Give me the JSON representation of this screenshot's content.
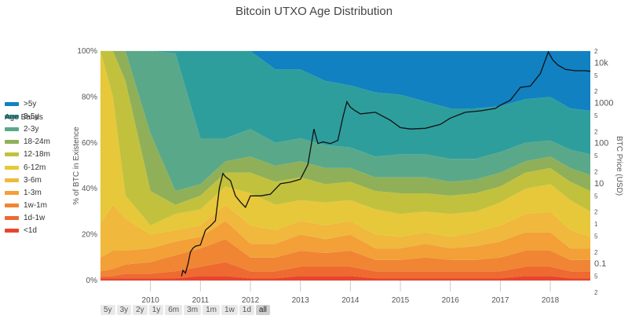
{
  "title": "Bitcoin UTXO Age Distribution",
  "legend_title": "Age Bands",
  "range_selector": {
    "buttons": [
      "5y",
      "3y",
      "2y",
      "1y",
      "6m",
      "3m",
      "1m",
      "1w",
      "1d",
      "all"
    ],
    "active": "all"
  },
  "chart_data": {
    "type": "area",
    "title": "Bitcoin UTXO Age Distribution",
    "stacking": "percent",
    "grid": true,
    "legend_position": "left",
    "x_axis": {
      "ticks": [
        "2010",
        "2011",
        "2012",
        "2013",
        "2014",
        "2015",
        "2016",
        "2017",
        "2018"
      ],
      "range": [
        2009.0,
        2018.8
      ]
    },
    "y_axis_left": {
      "label": "% of BTC in Existence",
      "ticks": [
        "0%",
        "20%",
        "40%",
        "60%",
        "80%",
        "100%"
      ],
      "range": [
        0,
        100
      ]
    },
    "y_axis_right": {
      "label": "BTC Price (USD)",
      "scale": "log",
      "tick_labels": [
        "2",
        "10k",
        "5",
        "2",
        "1000",
        "5",
        "2",
        "100",
        "5",
        "2",
        "10",
        "5",
        "2",
        "1",
        "5",
        "2",
        "0.1",
        "5",
        "2"
      ]
    },
    "x": [
      2009.0,
      2009.25,
      2009.5,
      2010.0,
      2010.5,
      2011.0,
      2011.5,
      2012.0,
      2012.5,
      2013.0,
      2013.5,
      2014.0,
      2014.5,
      2015.0,
      2015.5,
      2016.0,
      2016.5,
      2017.0,
      2017.5,
      2018.0,
      2018.4,
      2018.8
    ],
    "series": [
      {
        "name": "<1d",
        "color": "#e8452c",
        "values": [
          1,
          1,
          1,
          1,
          1,
          2,
          2,
          1,
          1,
          2,
          2,
          2,
          1,
          1,
          1,
          1,
          1,
          1,
          2,
          2,
          1,
          1
        ]
      },
      {
        "name": "1d-1w",
        "color": "#ee6a30",
        "values": [
          1,
          1,
          2,
          2,
          3,
          4,
          6,
          3,
          3,
          4,
          4,
          4,
          3,
          3,
          3,
          3,
          3,
          3,
          4,
          4,
          3,
          3
        ]
      },
      {
        "name": "1w-1m",
        "color": "#f08534",
        "values": [
          2,
          3,
          4,
          5,
          7,
          8,
          10,
          6,
          6,
          7,
          6,
          7,
          5,
          5,
          6,
          5,
          5,
          6,
          7,
          7,
          5,
          5
        ]
      },
      {
        "name": "1-3m",
        "color": "#f2a037",
        "values": [
          6,
          8,
          6,
          6,
          6,
          5,
          8,
          6,
          6,
          7,
          6,
          7,
          5,
          5,
          6,
          5,
          6,
          7,
          8,
          8,
          5,
          5
        ]
      },
      {
        "name": "3-6m",
        "color": "#f0b83c",
        "values": [
          15,
          20,
          14,
          6,
          5,
          5,
          7,
          8,
          6,
          6,
          6,
          6,
          6,
          5,
          5,
          5,
          6,
          7,
          8,
          9,
          8,
          5
        ]
      },
      {
        "name": "6-12m",
        "color": "#e6c83a",
        "values": [
          75,
          47,
          10,
          4,
          7,
          7,
          8,
          14,
          11,
          9,
          10,
          9,
          11,
          10,
          9,
          10,
          9,
          10,
          11,
          12,
          13,
          11
        ]
      },
      {
        "name": "12-18m",
        "color": "#c2c13e",
        "values": [
          0,
          20,
          50,
          15,
          4,
          6,
          6,
          9,
          10,
          10,
          8,
          8,
          8,
          9,
          8,
          8,
          8,
          7,
          7,
          7,
          8,
          9
        ]
      },
      {
        "name": "18-24m",
        "color": "#8fb058",
        "values": [
          0,
          0,
          13,
          25,
          6,
          5,
          5,
          7,
          7,
          7,
          7,
          6,
          6,
          7,
          7,
          6,
          6,
          6,
          5,
          5,
          6,
          7
        ]
      },
      {
        "name": "2-3y",
        "color": "#5aa88a",
        "values": [
          0,
          0,
          0,
          36,
          60,
          20,
          10,
          12,
          10,
          10,
          10,
          9,
          9,
          10,
          10,
          10,
          9,
          9,
          8,
          7,
          8,
          9
        ]
      },
      {
        "name": "3-5y",
        "color": "#2e9e9d",
        "values": [
          0,
          0,
          0,
          0,
          1,
          38,
          38,
          34,
          32,
          30,
          28,
          27,
          28,
          26,
          23,
          22,
          22,
          20,
          19,
          19,
          18,
          19
        ]
      },
      {
        "name": ">5y",
        "color": "#1181c1",
        "values": [
          0,
          0,
          0,
          0,
          0,
          0,
          0,
          0,
          8,
          8,
          13,
          15,
          18,
          19,
          22,
          25,
          25,
          24,
          21,
          20,
          25,
          26
        ]
      }
    ],
    "price_series": {
      "name": "BTC Price (USD)",
      "color": "#111111",
      "x": [
        2010.62,
        2010.65,
        2010.7,
        2010.75,
        2010.8,
        2010.85,
        2010.9,
        2011.0,
        2011.1,
        2011.2,
        2011.3,
        2011.38,
        2011.45,
        2011.5,
        2011.6,
        2011.7,
        2011.8,
        2011.9,
        2012.0,
        2012.2,
        2012.4,
        2012.6,
        2012.8,
        2013.0,
        2013.15,
        2013.27,
        2013.35,
        2013.45,
        2013.6,
        2013.75,
        2013.85,
        2013.93,
        2014.0,
        2014.1,
        2014.2,
        2014.5,
        2014.8,
        2015.0,
        2015.2,
        2015.5,
        2015.8,
        2016.0,
        2016.3,
        2016.6,
        2016.9,
        2017.0,
        2017.2,
        2017.4,
        2017.6,
        2017.8,
        2017.96,
        2018.05,
        2018.15,
        2018.3,
        2018.5,
        2018.7,
        2018.8
      ],
      "values": [
        0.05,
        0.07,
        0.06,
        0.1,
        0.2,
        0.25,
        0.28,
        0.3,
        0.7,
        0.9,
        1.2,
        8,
        18,
        15,
        12,
        5,
        3.5,
        2.6,
        5,
        5,
        5.5,
        10,
        11,
        13,
        30,
        230,
        100,
        110,
        100,
        120,
        450,
        1100,
        800,
        650,
        550,
        600,
        380,
        250,
        230,
        240,
        300,
        430,
        600,
        650,
        750,
        900,
        1200,
        2500,
        2700,
        5500,
        19000,
        12000,
        9000,
        7000,
        6500,
        6500,
        6300
      ]
    }
  }
}
